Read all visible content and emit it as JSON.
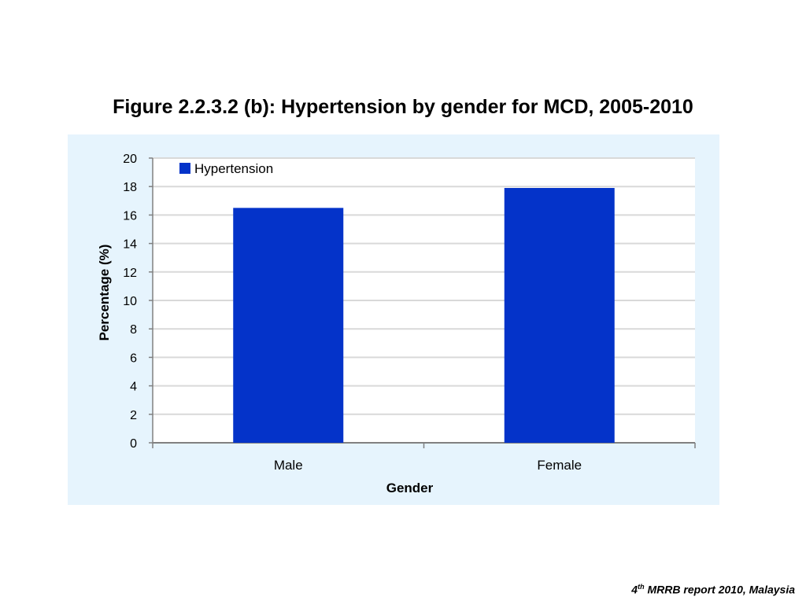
{
  "slide": {
    "title": "Figure 2.2.3.2 (b): Hypertension by gender for MCD, 2005-2010"
  },
  "footer": {
    "ordinal_number": "4",
    "ordinal_suffix": "th",
    "text": " MRRB report 2010, Malaysia"
  },
  "chart_data": {
    "type": "bar",
    "title": "Figure 2.2.3.2 (b): Hypertension by gender for MCD, 2005-2010",
    "categories": [
      "Male",
      "Female"
    ],
    "series": [
      {
        "name": "Hypertension",
        "values": [
          16.5,
          17.9
        ],
        "color": "#0433c9"
      }
    ],
    "xlabel": "Gender",
    "ylabel": "Percentage (%)",
    "ylim": [
      0,
      20
    ],
    "yticks": [
      0,
      2,
      4,
      6,
      8,
      10,
      12,
      14,
      16,
      18,
      20
    ],
    "grid": true,
    "legend": "top-left",
    "panel_background": "#e6f4fd",
    "plot_background": "#ffffff"
  }
}
